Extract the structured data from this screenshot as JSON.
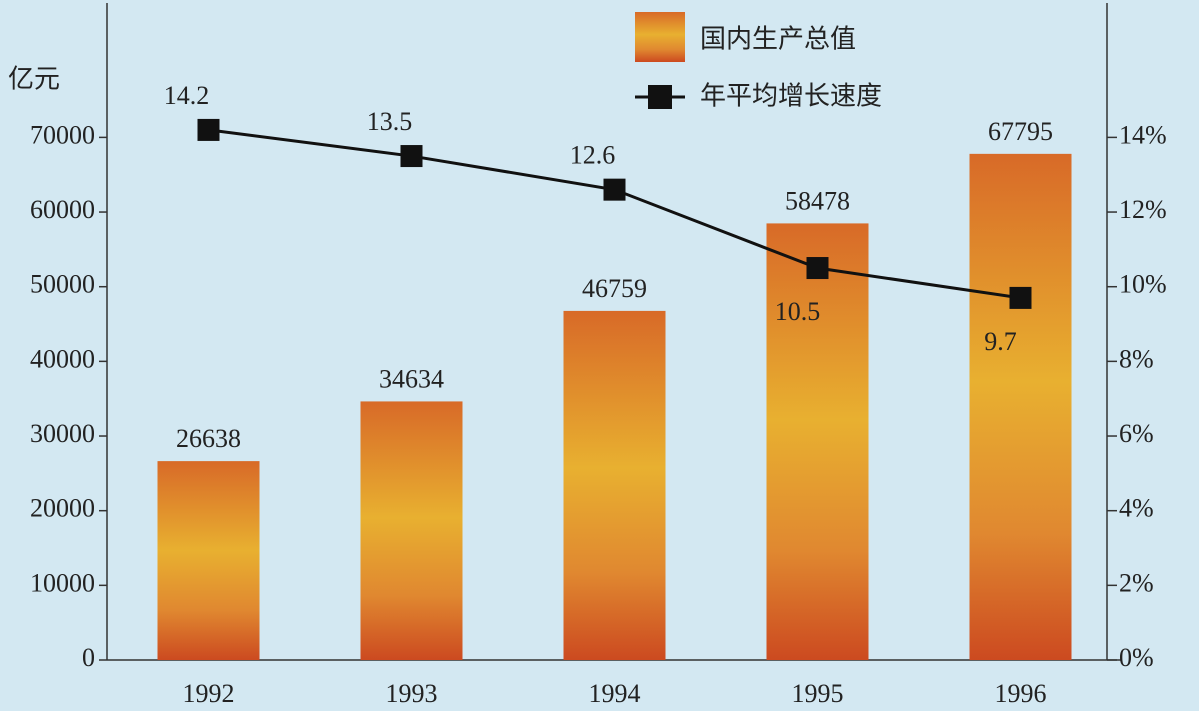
{
  "chart_data": {
    "type": "bar",
    "ylabel": "亿元",
    "categories": [
      "1992",
      "1993",
      "1994",
      "1995",
      "1996"
    ],
    "series": [
      {
        "name": "国内生产总值",
        "type": "bar",
        "color": "#e8b030",
        "values": [
          26638,
          34634,
          46759,
          58478,
          67795
        ]
      },
      {
        "name": "年平均增长速度",
        "type": "line",
        "axis": "y2",
        "color": "#111111",
        "values": [
          14.2,
          13.5,
          12.6,
          10.5,
          9.7
        ]
      }
    ],
    "ylim": [
      0,
      88000
    ],
    "yticks": [
      0,
      10000,
      20000,
      30000,
      40000,
      50000,
      60000,
      70000
    ],
    "y2lim": [
      0,
      17.6
    ],
    "y2ticks": [
      {
        "value": 0,
        "label": "0%"
      },
      {
        "value": 2,
        "label": "2%"
      },
      {
        "value": 4,
        "label": "4%"
      },
      {
        "value": 6,
        "label": "6%"
      },
      {
        "value": 8,
        "label": "8%"
      },
      {
        "value": 10,
        "label": "10%"
      },
      {
        "value": 12,
        "label": "12%"
      },
      {
        "value": 14,
        "label": "14%"
      }
    ],
    "legend": "top"
  }
}
